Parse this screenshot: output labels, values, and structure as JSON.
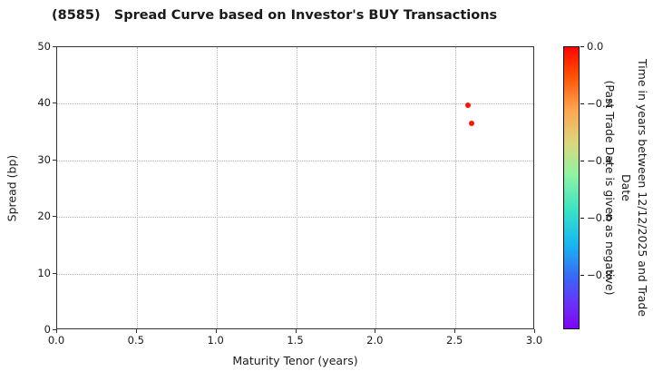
{
  "title": "(8585)   Spread Curve based on Investor's BUY Transactions",
  "chart_data": {
    "type": "scatter",
    "title": "(8585)   Spread Curve based on Investor's BUY Transactions",
    "xlabel": "Maturity Tenor (years)",
    "ylabel": "Spread (bp)",
    "xlim": [
      0.0,
      3.0
    ],
    "ylim": [
      0,
      50
    ],
    "x_ticks": [
      "0.0",
      "0.5",
      "1.0",
      "1.5",
      "2.0",
      "2.5",
      "3.0"
    ],
    "y_ticks": [
      "0",
      "10",
      "20",
      "30",
      "40",
      "50"
    ],
    "grid": true,
    "grid_style": "dotted",
    "points": [
      {
        "x": 2.58,
        "y": 39.7,
        "color_value": 0.0,
        "color": "#fe1400"
      },
      {
        "x": 2.6,
        "y": 36.5,
        "color_value": 0.0,
        "color": "#fe1400"
      }
    ],
    "colorbar": {
      "label_line1": "Time in years between 12/12/2025 and Trade Date",
      "label_line2": "(Past Trade Date is given as negative)",
      "colormap": "rainbow",
      "range": [
        0.0,
        -0.99
      ],
      "ticks": [
        "0.0",
        "−0.2",
        "−0.4",
        "−0.6",
        "−0.8"
      ],
      "tick_values": [
        0.0,
        -0.2,
        -0.4,
        -0.6,
        -0.8
      ],
      "gradient_stops": [
        [
          "#ff0505",
          0
        ],
        [
          "#ff4f02",
          10
        ],
        [
          "#ffa44e",
          22
        ],
        [
          "#dcd77e",
          34
        ],
        [
          "#90f3a2",
          45
        ],
        [
          "#3ae3c5",
          58
        ],
        [
          "#18b7f0",
          70
        ],
        [
          "#3a66f7",
          82
        ],
        [
          "#6c2df8",
          92
        ],
        [
          "#7d05f3",
          100
        ]
      ]
    }
  }
}
